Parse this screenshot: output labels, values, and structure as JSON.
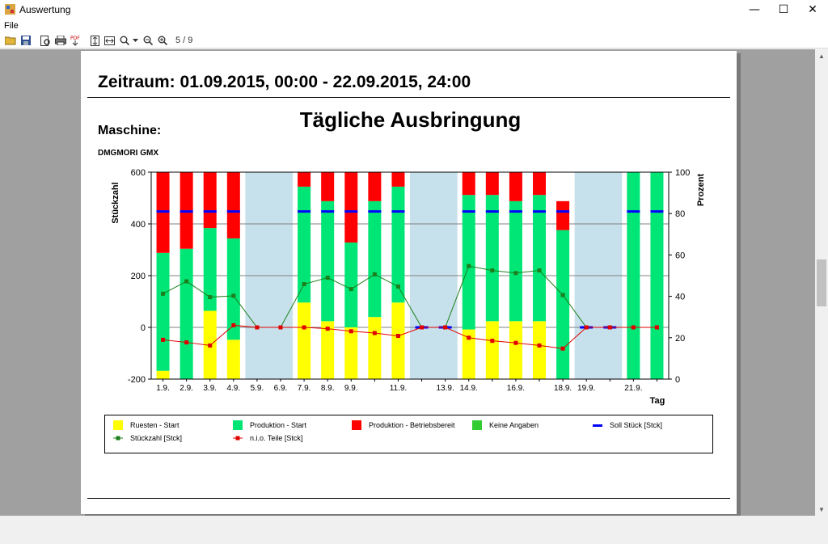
{
  "window": {
    "title": "Auswertung",
    "minimize": "—",
    "maximize": "☐",
    "close": "✕"
  },
  "menu": {
    "file": "File"
  },
  "toolbar": {
    "page_indicator": "5 / 9"
  },
  "report": {
    "zeitraum": "Zeitraum: 01.09.2015, 00:00 - 22.09.2015, 24:00",
    "chart_title": "Tägliche Ausbringung",
    "maschine_label": "Maschine:",
    "maschine_value": "DMGMORI GMX"
  },
  "colors": {
    "ruesten": "#ffff00",
    "produktion_start": "#00e676",
    "betriebsbereit": "#ff0000",
    "keine_angaben": "#33cc33",
    "soll": "#0000ff",
    "stueckzahl": "#1b7f1b",
    "nio": "#e00000",
    "weekend": "#c7e1ec"
  },
  "legend": [
    {
      "label": "Ruesten - Start",
      "color": "#ffff00",
      "kind": "box"
    },
    {
      "label": "Produktion - Start",
      "color": "#00e676",
      "kind": "box"
    },
    {
      "label": "Produktion - Betriebsbereit",
      "color": "#ff0000",
      "kind": "box"
    },
    {
      "label": "Keine Angaben",
      "color": "#33cc33",
      "kind": "box"
    },
    {
      "label": "Soll Stück [Stck]",
      "color": "#0000ff",
      "kind": "dash"
    },
    {
      "label": "Stückzahl [Stck]",
      "color": "#1b7f1b",
      "kind": "marker"
    },
    {
      "label": "n.i.o. Teile [Stck]",
      "color": "#e00000",
      "kind": "marker"
    }
  ],
  "chart_data": {
    "type": "bar",
    "title": "Tägliche Ausbringung",
    "xlabel": "Tag",
    "ylabel": "Stückzahl",
    "y2label": "Prozent",
    "ylim": [
      -200,
      600
    ],
    "y2lim": [
      0,
      100
    ],
    "yticks": [
      -200,
      0,
      200,
      400,
      600
    ],
    "y2ticks": [
      0,
      20,
      40,
      60,
      80,
      100
    ],
    "grid": true,
    "stacked": true,
    "days": [
      {
        "label": "1.9.",
        "weekend": false,
        "ruesten": 4,
        "produktion": 57,
        "betriebsbereit": 39,
        "stueckzahl": 130,
        "nio": -48,
        "soll": 81
      },
      {
        "label": "2.9.",
        "weekend": false,
        "ruesten": 0,
        "produktion": 63,
        "betriebsbereit": 37,
        "stueckzahl": 178,
        "nio": -58,
        "soll": 81
      },
      {
        "label": "3.9.",
        "weekend": false,
        "ruesten": 33,
        "produktion": 40,
        "betriebsbereit": 27,
        "stueckzahl": 117,
        "nio": -70,
        "soll": 81
      },
      {
        "label": "4.9.",
        "weekend": false,
        "ruesten": 19,
        "produktion": 49,
        "betriebsbereit": 32,
        "stueckzahl": 122,
        "nio": 8,
        "soll": 81
      },
      {
        "label": "5.9.",
        "weekend": true,
        "stueckzahl": 0,
        "nio": 0
      },
      {
        "label": "6.9.",
        "weekend": true,
        "stueckzahl": 0,
        "nio": 0
      },
      {
        "label": "7.9.",
        "weekend": false,
        "ruesten": 37,
        "produktion": 56,
        "betriebsbereit": 7,
        "stueckzahl": 167,
        "nio": 0,
        "soll": 81
      },
      {
        "label": "8.9.",
        "weekend": false,
        "ruesten": 28,
        "produktion": 58,
        "betriebsbereit": 14,
        "stueckzahl": 192,
        "nio": -5,
        "soll": 81
      },
      {
        "label": "9.9.",
        "weekend": false,
        "ruesten": 25,
        "produktion": 41,
        "betriebsbereit": 34,
        "stueckzahl": 148,
        "nio": -15,
        "soll": 81
      },
      {
        "label": "",
        "weekend": false,
        "ruesten": 30,
        "produktion": 56,
        "betriebsbereit": 14,
        "stueckzahl": 205,
        "nio": -22,
        "soll": 81
      },
      {
        "label": "11.9.",
        "weekend": false,
        "ruesten": 37,
        "produktion": 56,
        "betriebsbereit": 7,
        "stueckzahl": 158,
        "nio": -33,
        "soll": 81
      },
      {
        "label": "",
        "weekend": true,
        "stueckzahl": 0,
        "nio": 0,
        "soll": 25
      },
      {
        "label": "13.9.",
        "weekend": true,
        "stueckzahl": 0,
        "nio": 0,
        "soll": 25
      },
      {
        "label": "14.9.",
        "weekend": false,
        "ruesten": 24,
        "produktion": 65,
        "betriebsbereit": 11,
        "stueckzahl": 237,
        "nio": -40,
        "soll": 81
      },
      {
        "label": "",
        "weekend": false,
        "ruesten": 28,
        "produktion": 61,
        "betriebsbereit": 11,
        "stueckzahl": 220,
        "nio": -52,
        "soll": 81
      },
      {
        "label": "16.9.",
        "weekend": false,
        "ruesten": 28,
        "produktion": 58,
        "betriebsbereit": 14,
        "stueckzahl": 210,
        "nio": -60,
        "soll": 81
      },
      {
        "label": "",
        "weekend": false,
        "ruesten": 28,
        "produktion": 61,
        "betriebsbereit": 11,
        "stueckzahl": 220,
        "nio": -70,
        "soll": 81
      },
      {
        "label": "18.9.",
        "weekend": false,
        "ruesten": 0,
        "produktion": 72,
        "betriebsbereit": 14,
        "stueckzahl": 125,
        "nio": -82,
        "soll": 81
      },
      {
        "label": "19.9.",
        "weekend": true,
        "stueckzahl": 0,
        "nio": 0,
        "soll": 25
      },
      {
        "label": "",
        "weekend": true,
        "stueckzahl": 0,
        "nio": 0,
        "soll": 25
      },
      {
        "label": "21.9.",
        "weekend": false,
        "ruesten": 0,
        "produktion": 100,
        "betriebsbereit": 0,
        "stueckzahl": 0,
        "nio": 0,
        "soll": 81
      },
      {
        "label": "",
        "weekend": false,
        "ruesten": 0,
        "produktion": 100,
        "betriebsbereit": 0,
        "stueckzahl": 0,
        "nio": 0,
        "soll": 81
      }
    ]
  }
}
